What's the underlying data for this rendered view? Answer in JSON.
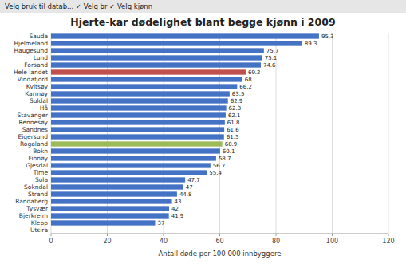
{
  "chart_data": {
    "type": "bar",
    "orientation": "horizontal",
    "title": "Hjerte-kar dødelighet blant begge kjønn i 2009",
    "x_label": "Antall døde per 100 000 innbyggere",
    "annotations": [
      "Velg bruk til datab...   ✓ Velg br   ✓ Velg kjønn"
    ],
    "categories": [
      "Sauda",
      "Hjelmeland",
      "Haugesund",
      "Lund",
      "Forsand",
      "Hele landet",
      "Vindafjord",
      "Kvitsøy",
      "Karmøy",
      "Suldal",
      "Hå",
      "Stavanger",
      "Rennesøy",
      "Sandnes",
      "Eigersund",
      "Rogaland",
      "Bokn",
      "Finnøy",
      "Gjesdal",
      "Time",
      "Sola",
      "Sokndal",
      "Strand",
      "Randaberg",
      "Tysvær",
      "Bjerkreim",
      "Klepp",
      "Utsira"
    ],
    "values": [
      95.3,
      89.3,
      75.7,
      75.1,
      74.6,
      69.2,
      68,
      66.2,
      63.5,
      62.9,
      62.3,
      62.1,
      61.8,
      61.6,
      61.5,
      60.9,
      60.1,
      58.7,
      56.7,
      55.4,
      47.7,
      47,
      44.8,
      43,
      42,
      41.9,
      37,
      0
    ],
    "value_labels": [
      "95.3",
      "89.3",
      "75.7",
      "75.1",
      "74.6",
      "69.2",
      "68",
      "66.2",
      "63.5",
      "62.9",
      "62.3",
      "62.1",
      "61.8",
      "61.6",
      "61.5",
      "60.9",
      "60.1",
      "58.7",
      "56.7",
      "55.4",
      "47.7",
      "47",
      "44.8",
      "43",
      "42",
      "41.9",
      "37",
      null
    ],
    "data_labels": true,
    "colors": [
      "#4472C4",
      "#4472C4",
      "#4472C4",
      "#4472C4",
      "#4472C4",
      "#C0504D",
      "#4472C4",
      "#4472C4",
      "#4472C4",
      "#4472C4",
      "#4472C4",
      "#4472C4",
      "#4472C4",
      "#4472C4",
      "#4472C4",
      "#9BBB59",
      "#4472C4",
      "#4472C4",
      "#4472C4",
      "#4472C4",
      "#4472C4",
      "#4472C4",
      "#4472C4",
      "#4472C4",
      "#4472C4",
      "#4472C4",
      "#4472C4",
      "#4472C4"
    ],
    "xlim": [
      0,
      120
    ],
    "xticks": [
      0,
      20,
      40,
      60,
      80,
      100,
      120
    ],
    "grid": true
  }
}
